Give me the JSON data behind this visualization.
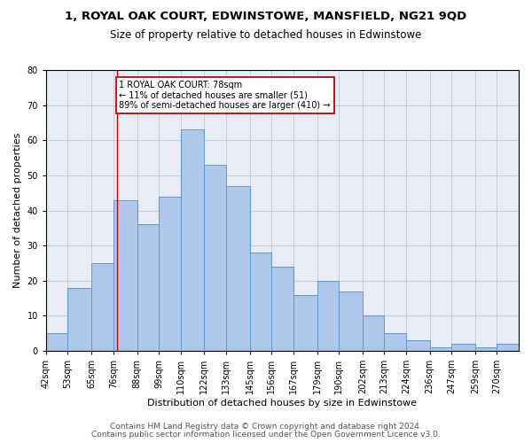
{
  "title": "1, ROYAL OAK COURT, EDWINSTOWE, MANSFIELD, NG21 9QD",
  "subtitle": "Size of property relative to detached houses in Edwinstowe",
  "xlabel": "Distribution of detached houses by size in Edwinstowe",
  "ylabel": "Number of detached properties",
  "categories": [
    "42sqm",
    "53sqm",
    "65sqm",
    "76sqm",
    "88sqm",
    "99sqm",
    "110sqm",
    "122sqm",
    "133sqm",
    "145sqm",
    "156sqm",
    "167sqm",
    "179sqm",
    "190sqm",
    "202sqm",
    "213sqm",
    "224sqm",
    "236sqm",
    "247sqm",
    "259sqm",
    "270sqm"
  ],
  "bar_heights": [
    5,
    18,
    25,
    43,
    36,
    44,
    63,
    53,
    47,
    28,
    24,
    16,
    20,
    17,
    10,
    5,
    3,
    1,
    2,
    1,
    2
  ],
  "bin_edges": [
    42,
    53,
    65,
    76,
    88,
    99,
    110,
    122,
    133,
    145,
    156,
    167,
    179,
    190,
    202,
    213,
    224,
    236,
    247,
    259,
    270,
    281
  ],
  "bar_color": "#aec6e8",
  "bar_edge_color": "#5b9bd5",
  "vline_x": 78,
  "vline_color": "#cc0000",
  "annotation_text": "1 ROYAL OAK COURT: 78sqm\n← 11% of detached houses are smaller (51)\n89% of semi-detached houses are larger (410) →",
  "annotation_box_color": "#ffffff",
  "annotation_box_edge": "#cc0000",
  "ylim": [
    0,
    80
  ],
  "yticks": [
    0,
    10,
    20,
    30,
    40,
    50,
    60,
    70,
    80
  ],
  "grid_color": "#c0c8d8",
  "bg_color": "#e8edf5",
  "footer_line1": "Contains HM Land Registry data © Crown copyright and database right 2024.",
  "footer_line2": "Contains public sector information licensed under the Open Government Licence v3.0.",
  "title_fontsize": 9.5,
  "subtitle_fontsize": 8.5,
  "xlabel_fontsize": 8,
  "ylabel_fontsize": 8,
  "tick_fontsize": 7,
  "footer_fontsize": 6.5
}
